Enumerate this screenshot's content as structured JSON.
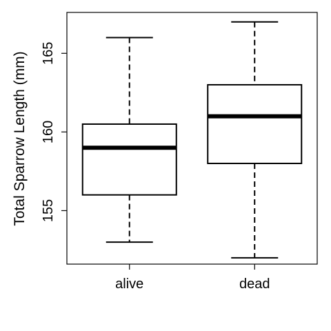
{
  "chart_data": {
    "type": "box",
    "title": "",
    "xlabel": "",
    "ylabel": "Total Sparrow Length (mm)",
    "categories": [
      "alive",
      "dead"
    ],
    "boxes": [
      {
        "name": "alive",
        "whisker_low": 153,
        "q1": 156,
        "median": 159,
        "q3": 160.5,
        "whisker_high": 166
      },
      {
        "name": "dead",
        "whisker_low": 152,
        "q1": 158,
        "median": 161,
        "q3": 163,
        "whisker_high": 167
      }
    ],
    "ylim": [
      151.6,
      167.6
    ],
    "yticks": [
      155,
      160,
      165
    ],
    "ytick_labels": [
      "155",
      "160",
      "165"
    ],
    "grid": false,
    "legend": "none"
  }
}
